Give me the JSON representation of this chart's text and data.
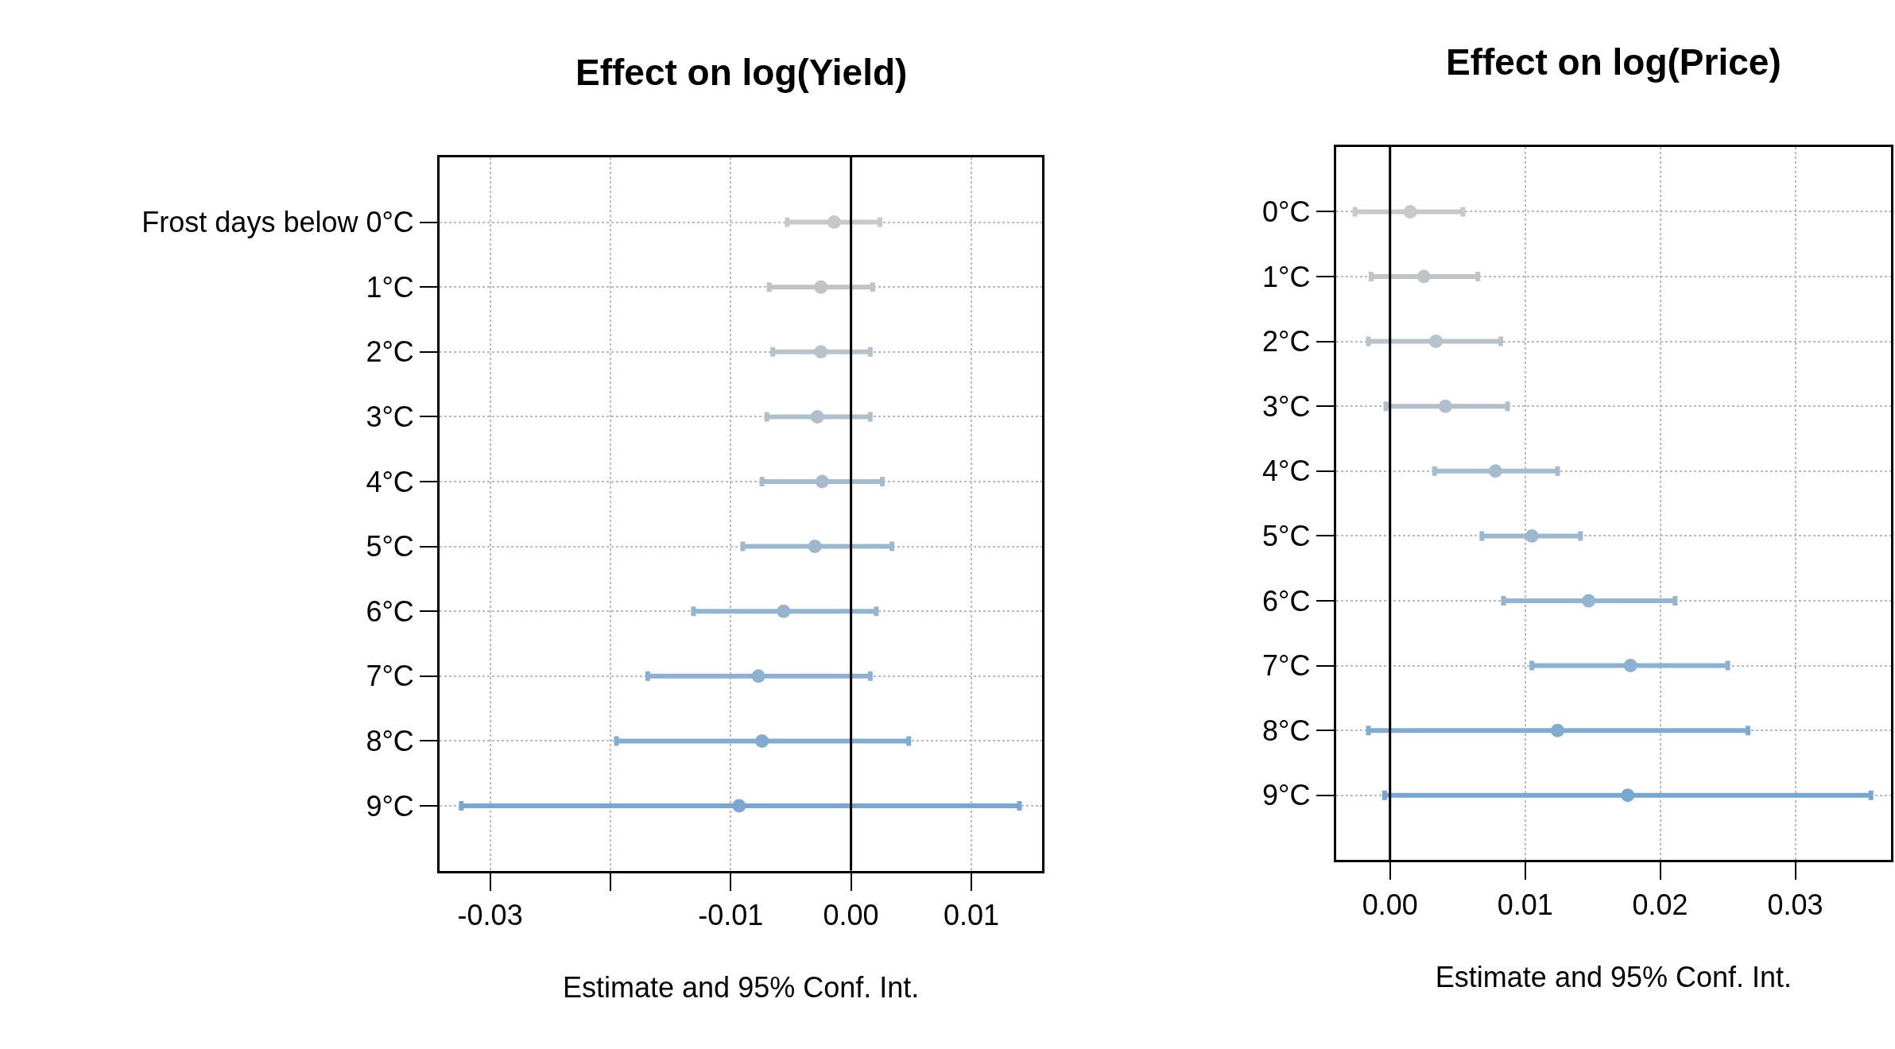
{
  "chart_data": [
    {
      "type": "scatter",
      "orientation": "horizontal",
      "title": "Effect on log(Yield)",
      "xlabel": "Estimate and 95% Conf. Int.",
      "categories": [
        "Frost days below 0°C",
        "1°C",
        "2°C",
        "3°C",
        "4°C",
        "5°C",
        "6°C",
        "7°C",
        "8°C",
        "9°C"
      ],
      "values": [
        -0.0014,
        -0.0025,
        -0.0025,
        -0.0028,
        -0.0024,
        -0.003,
        -0.0056,
        -0.0077,
        -0.0074,
        -0.0093
      ],
      "errors": [
        [
          -0.0053,
          0.0024
        ],
        [
          -0.0068,
          0.0018
        ],
        [
          -0.0065,
          0.0016
        ],
        [
          -0.007,
          0.0016
        ],
        0.005,
        [
          -0.009,
          0.0034
        ],
        [
          -0.0131,
          0.0021
        ],
        [
          -0.0169,
          0.0016
        ],
        [
          -0.0195,
          0.0048
        ],
        [
          -0.0324,
          0.014
        ]
      ],
      "colors": [
        "#c8c8c8",
        "#c0c4c8",
        "#b8c2cb",
        "#afbfcc",
        "#a6bccd",
        "#9db8ce",
        "#94b4cf",
        "#8bb0d0",
        "#82abd0",
        "#79a7d1"
      ],
      "xlim": [
        -0.0342,
        0.0159
      ],
      "xticks": [
        {
          "value": -0.03,
          "label": "-0.03"
        },
        {
          "value": -0.02,
          "label": null
        },
        {
          "value": -0.01,
          "label": "-0.01"
        },
        {
          "value": 0,
          "label": "0.00"
        },
        {
          "value": 0.01,
          "label": "0.01"
        }
      ],
      "ref_lines": [
        {
          "axis": "x",
          "value": 0,
          "color": "#000000"
        }
      ],
      "grid": true,
      "marker": "circle",
      "legend": false
    },
    {
      "type": "scatter",
      "orientation": "horizontal",
      "title": "Effect on log(Price)",
      "xlabel": "Estimate and 95% Conf. Int.",
      "categories": [
        "0°C",
        "1°C",
        "2°C",
        "3°C",
        "4°C",
        "5°C",
        "6°C",
        "7°C",
        "8°C",
        "9°C"
      ],
      "values": [
        0.0015,
        0.0025,
        0.0034,
        0.0041,
        0.0078,
        0.0105,
        0.0147,
        0.0178,
        0.0124,
        0.0176
      ],
      "errors": [
        [
          -0.0026,
          0.0054
        ],
        [
          -0.0014,
          0.0065
        ],
        [
          -0.0016,
          0.0082
        ],
        [
          -0.0003,
          0.0087
        ],
        [
          0.0033,
          0.0124
        ],
        [
          0.0068,
          0.0141
        ],
        [
          0.0084,
          0.0211
        ],
        [
          0.0105,
          0.025
        ],
        [
          -0.0016,
          0.0265
        ],
        [
          -0.0004,
          0.0356
        ]
      ],
      "colors": [
        "#c8c8c8",
        "#c0c4c8",
        "#b8c2cb",
        "#afbfcc",
        "#a6bccd",
        "#9db8ce",
        "#94b4cf",
        "#8bb0d0",
        "#82abd0",
        "#79a7d1"
      ],
      "xlim": [
        -0.004,
        0.0371
      ],
      "xticks": [
        {
          "value": 0,
          "label": "0.00"
        },
        {
          "value": 0.01,
          "label": "0.01"
        },
        {
          "value": 0.02,
          "label": "0.02"
        },
        {
          "value": 0.03,
          "label": "0.03"
        }
      ],
      "ref_lines": [
        {
          "axis": "x",
          "value": 0,
          "color": "#000000"
        }
      ],
      "grid": true,
      "marker": "circle",
      "legend": false
    }
  ]
}
